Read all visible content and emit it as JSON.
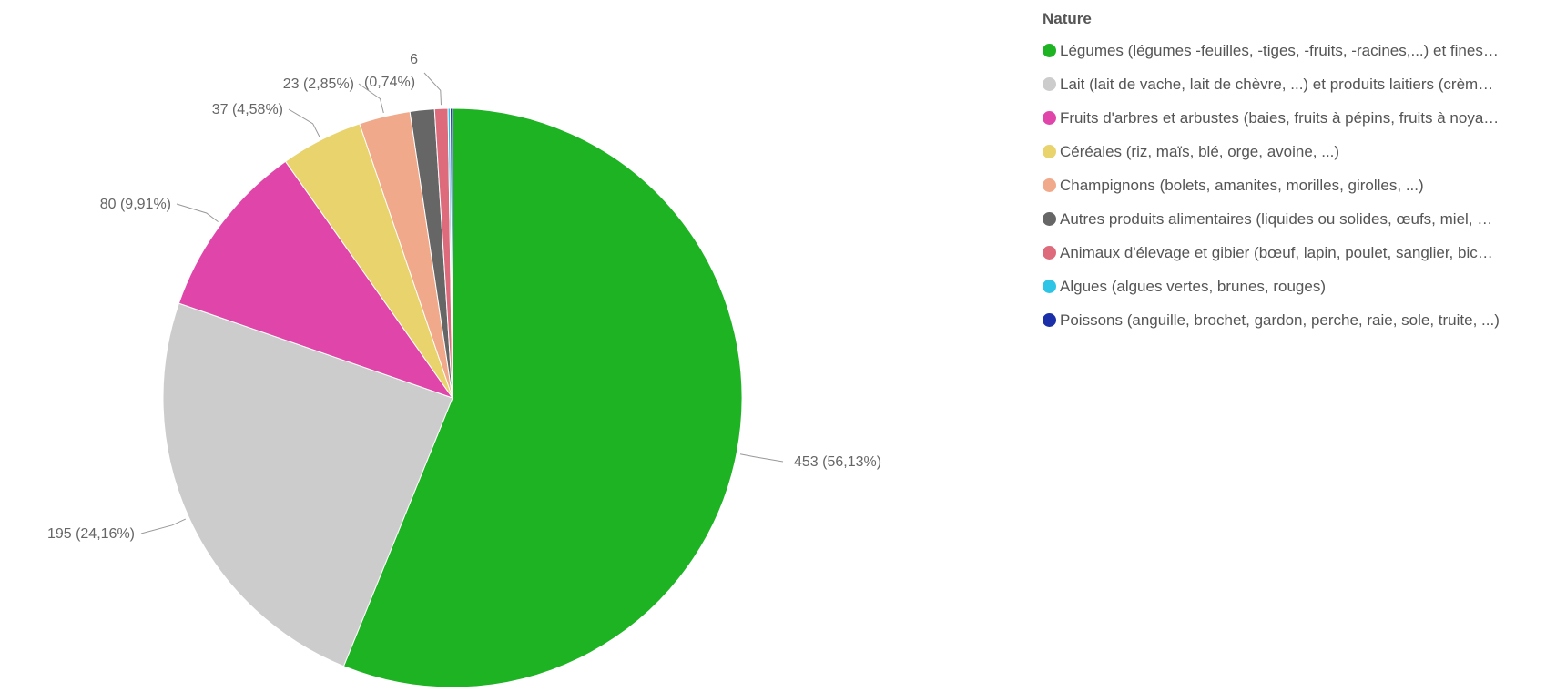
{
  "legend": {
    "title": "Nature",
    "items": [
      {
        "label": "Légumes (légumes -feuilles, -tiges, -fruits, -racines,...) et fines…",
        "color": "#1db323"
      },
      {
        "label": "Lait (lait de vache, lait de chèvre, ...) et produits laitiers (crèm…",
        "color": "#cccccc"
      },
      {
        "label": "Fruits d'arbres et arbustes (baies, fruits à pépins, fruits à noya…",
        "color": "#e046a9"
      },
      {
        "label": "Céréales  (riz, maïs, blé, orge, avoine, ...)",
        "color": "#e8d36c"
      },
      {
        "label": "Champignons (bolets, amanites, morilles, girolles, ...)",
        "color": "#f0a98a"
      },
      {
        "label": "Autres produits alimentaires (liquides ou solides, œufs, miel, …",
        "color": "#666666"
      },
      {
        "label": "Animaux d'élevage et gibier (bœuf, lapin, poulet, sanglier, bic…",
        "color": "#dd6b7b"
      },
      {
        "label": "Algues (algues vertes, brunes, rouges)",
        "color": "#2ec4e6"
      },
      {
        "label": "Poissons (anguille, brochet, gardon, perche, raie, sole, truite, ...)",
        "color": "#1a2fa8"
      }
    ]
  },
  "chart_data": {
    "type": "pie",
    "title": "",
    "legend_title": "Nature",
    "legend_position": "right",
    "start": "top, clockwise",
    "slices": [
      {
        "value": 453,
        "percent": "56,13%",
        "label": "453 (56,13%)",
        "color": "#1db323"
      },
      {
        "value": 195,
        "percent": "24,16%",
        "label": "195 (24,16%)",
        "color": "#cccccc"
      },
      {
        "value": 80,
        "percent": "9,91%",
        "label": "80 (9,91%)",
        "color": "#e046a9"
      },
      {
        "value": 37,
        "percent": "4,58%",
        "label": "37 (4,58%)",
        "color": "#e8d36c"
      },
      {
        "value": 23,
        "percent": "2,85%",
        "label": "23 (2,85%)",
        "color": "#f0a98a"
      },
      {
        "value": 11,
        "label": "",
        "color": "#666666"
      },
      {
        "value": 6,
        "percent": "0,74%",
        "label": "6 (0,74%)",
        "color": "#dd6b7b"
      },
      {
        "value": 1,
        "label": "",
        "color": "#2ec4e6"
      },
      {
        "value": 1,
        "label": "",
        "color": "#1a2fa8"
      }
    ]
  }
}
